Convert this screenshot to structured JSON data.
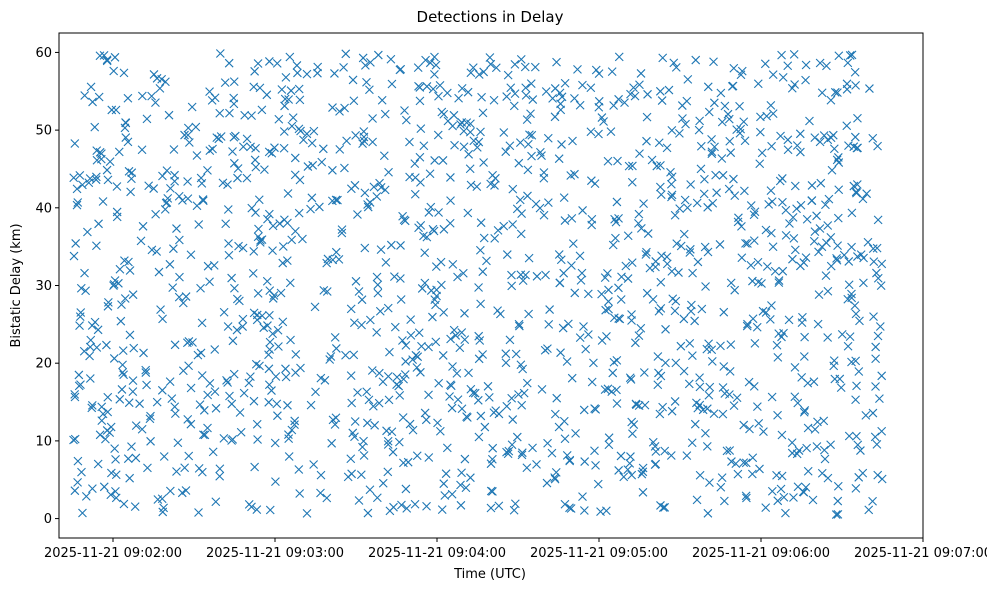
{
  "chart_data": {
    "type": "scatter",
    "title": "Detections in Delay",
    "xlabel": "Time (UTC)",
    "ylabel": "Bistatic Delay (km)",
    "x_unit": "time",
    "x_start": "2025-11-21 09:01:45",
    "x_end": "2025-11-21 09:06:45",
    "xlim": [
      "2025-11-21 09:01:40",
      "2025-11-21 09:07:00"
    ],
    "ylim": [
      -2.5,
      62.5
    ],
    "x_ticks": [
      "2025-11-21 09:02:00",
      "2025-11-21 09:03:00",
      "2025-11-21 09:04:00",
      "2025-11-21 09:05:00",
      "2025-11-21 09:06:00",
      "2025-11-21 09:07:00"
    ],
    "y_ticks": [
      0,
      10,
      20,
      30,
      40,
      50,
      60
    ],
    "marker": "x",
    "color": "#1f77b4",
    "grid": false,
    "points_count_estimate": 1500,
    "y_range_observed": [
      0.5,
      60
    ]
  }
}
